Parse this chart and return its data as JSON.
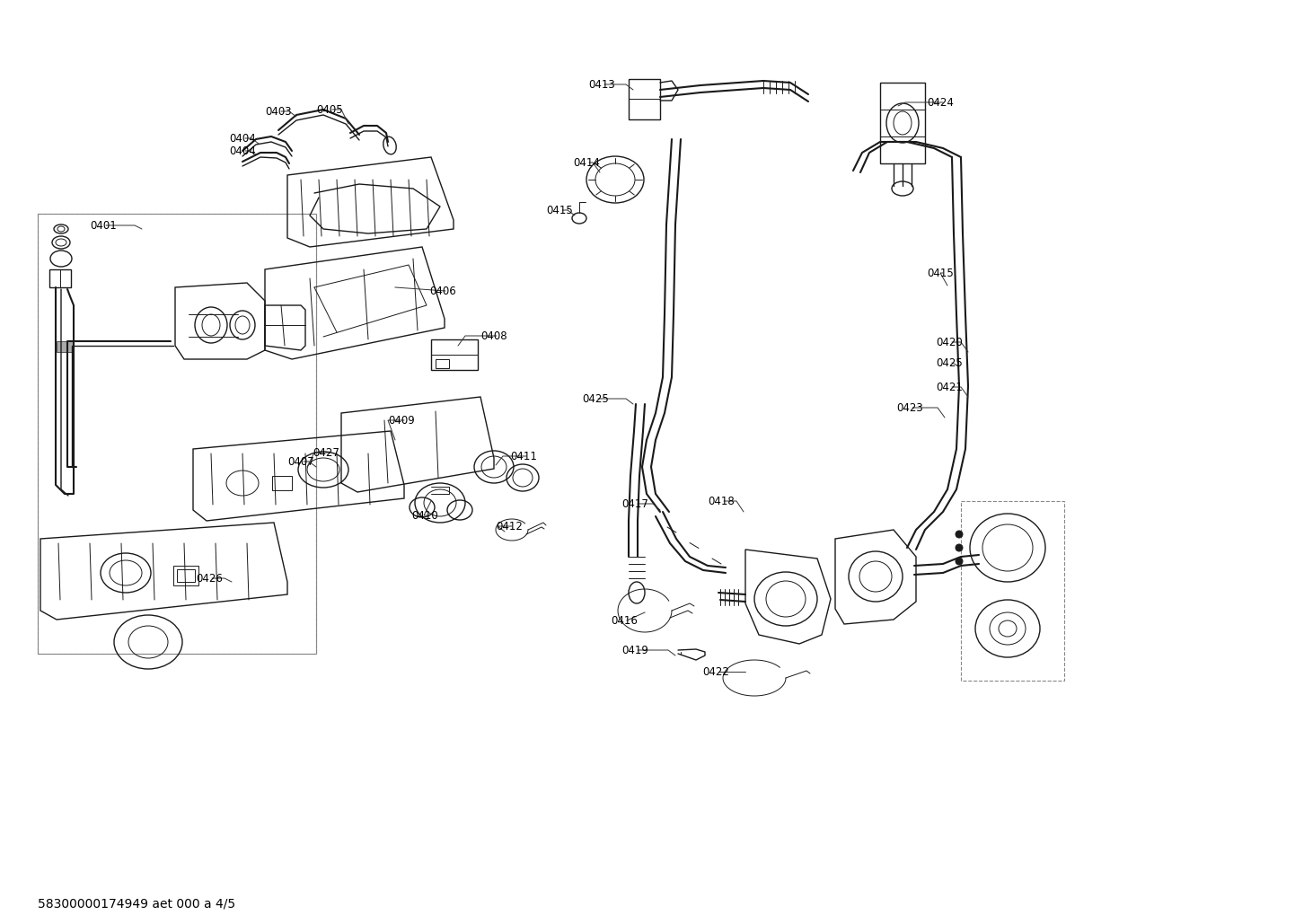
{
  "footer": "58300000174949 aet 000 a 4/5",
  "bg_color": "#ffffff",
  "line_color": "#1a1a1a",
  "label_color": "#000000",
  "label_fontsize": 8.5,
  "footer_fontsize": 10,
  "fig_width": 14.42,
  "fig_height": 10.19,
  "dpi": 100
}
